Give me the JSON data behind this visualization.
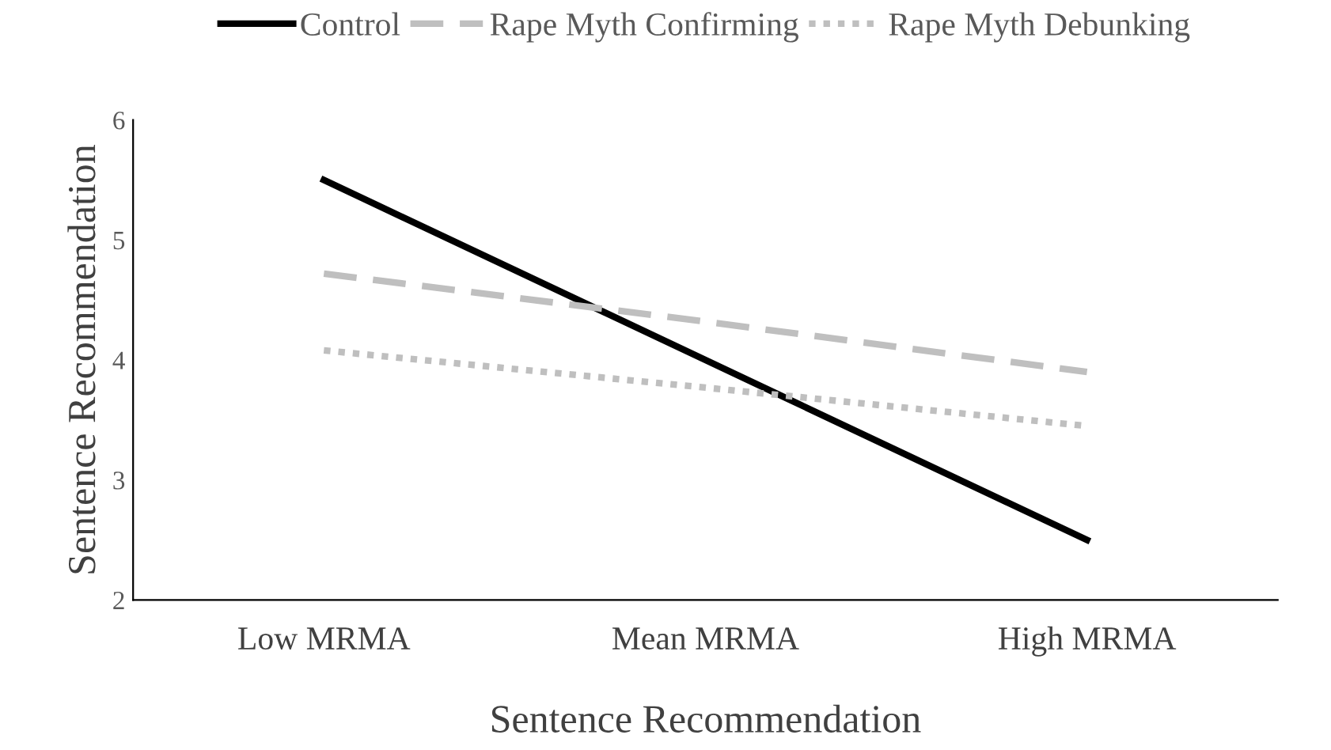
{
  "chart_data": {
    "type": "line",
    "xlabel": "Sentence Recommendation",
    "ylabel": "Sentence Recommendation",
    "categories": [
      "Low MRMA",
      "Mean MRMA",
      "High MRMA"
    ],
    "series": [
      {
        "name": "Control",
        "color": "#000000",
        "line_style": "solid",
        "values": [
          5.5,
          4.0,
          2.5
        ]
      },
      {
        "name": "Rape Myth Confirming",
        "color": "#bfbfbf",
        "line_style": "dashed",
        "values": [
          4.72,
          4.32,
          3.9
        ]
      },
      {
        "name": "Rape Myth Debunking",
        "color": "#bfbfbf",
        "line_style": "dotted",
        "values": [
          4.08,
          3.77,
          3.45
        ]
      }
    ],
    "ylim": [
      2,
      6
    ],
    "yticks": [
      2,
      3,
      4,
      5,
      6
    ],
    "grid": false,
    "legend": "top",
    "marker": "none"
  }
}
